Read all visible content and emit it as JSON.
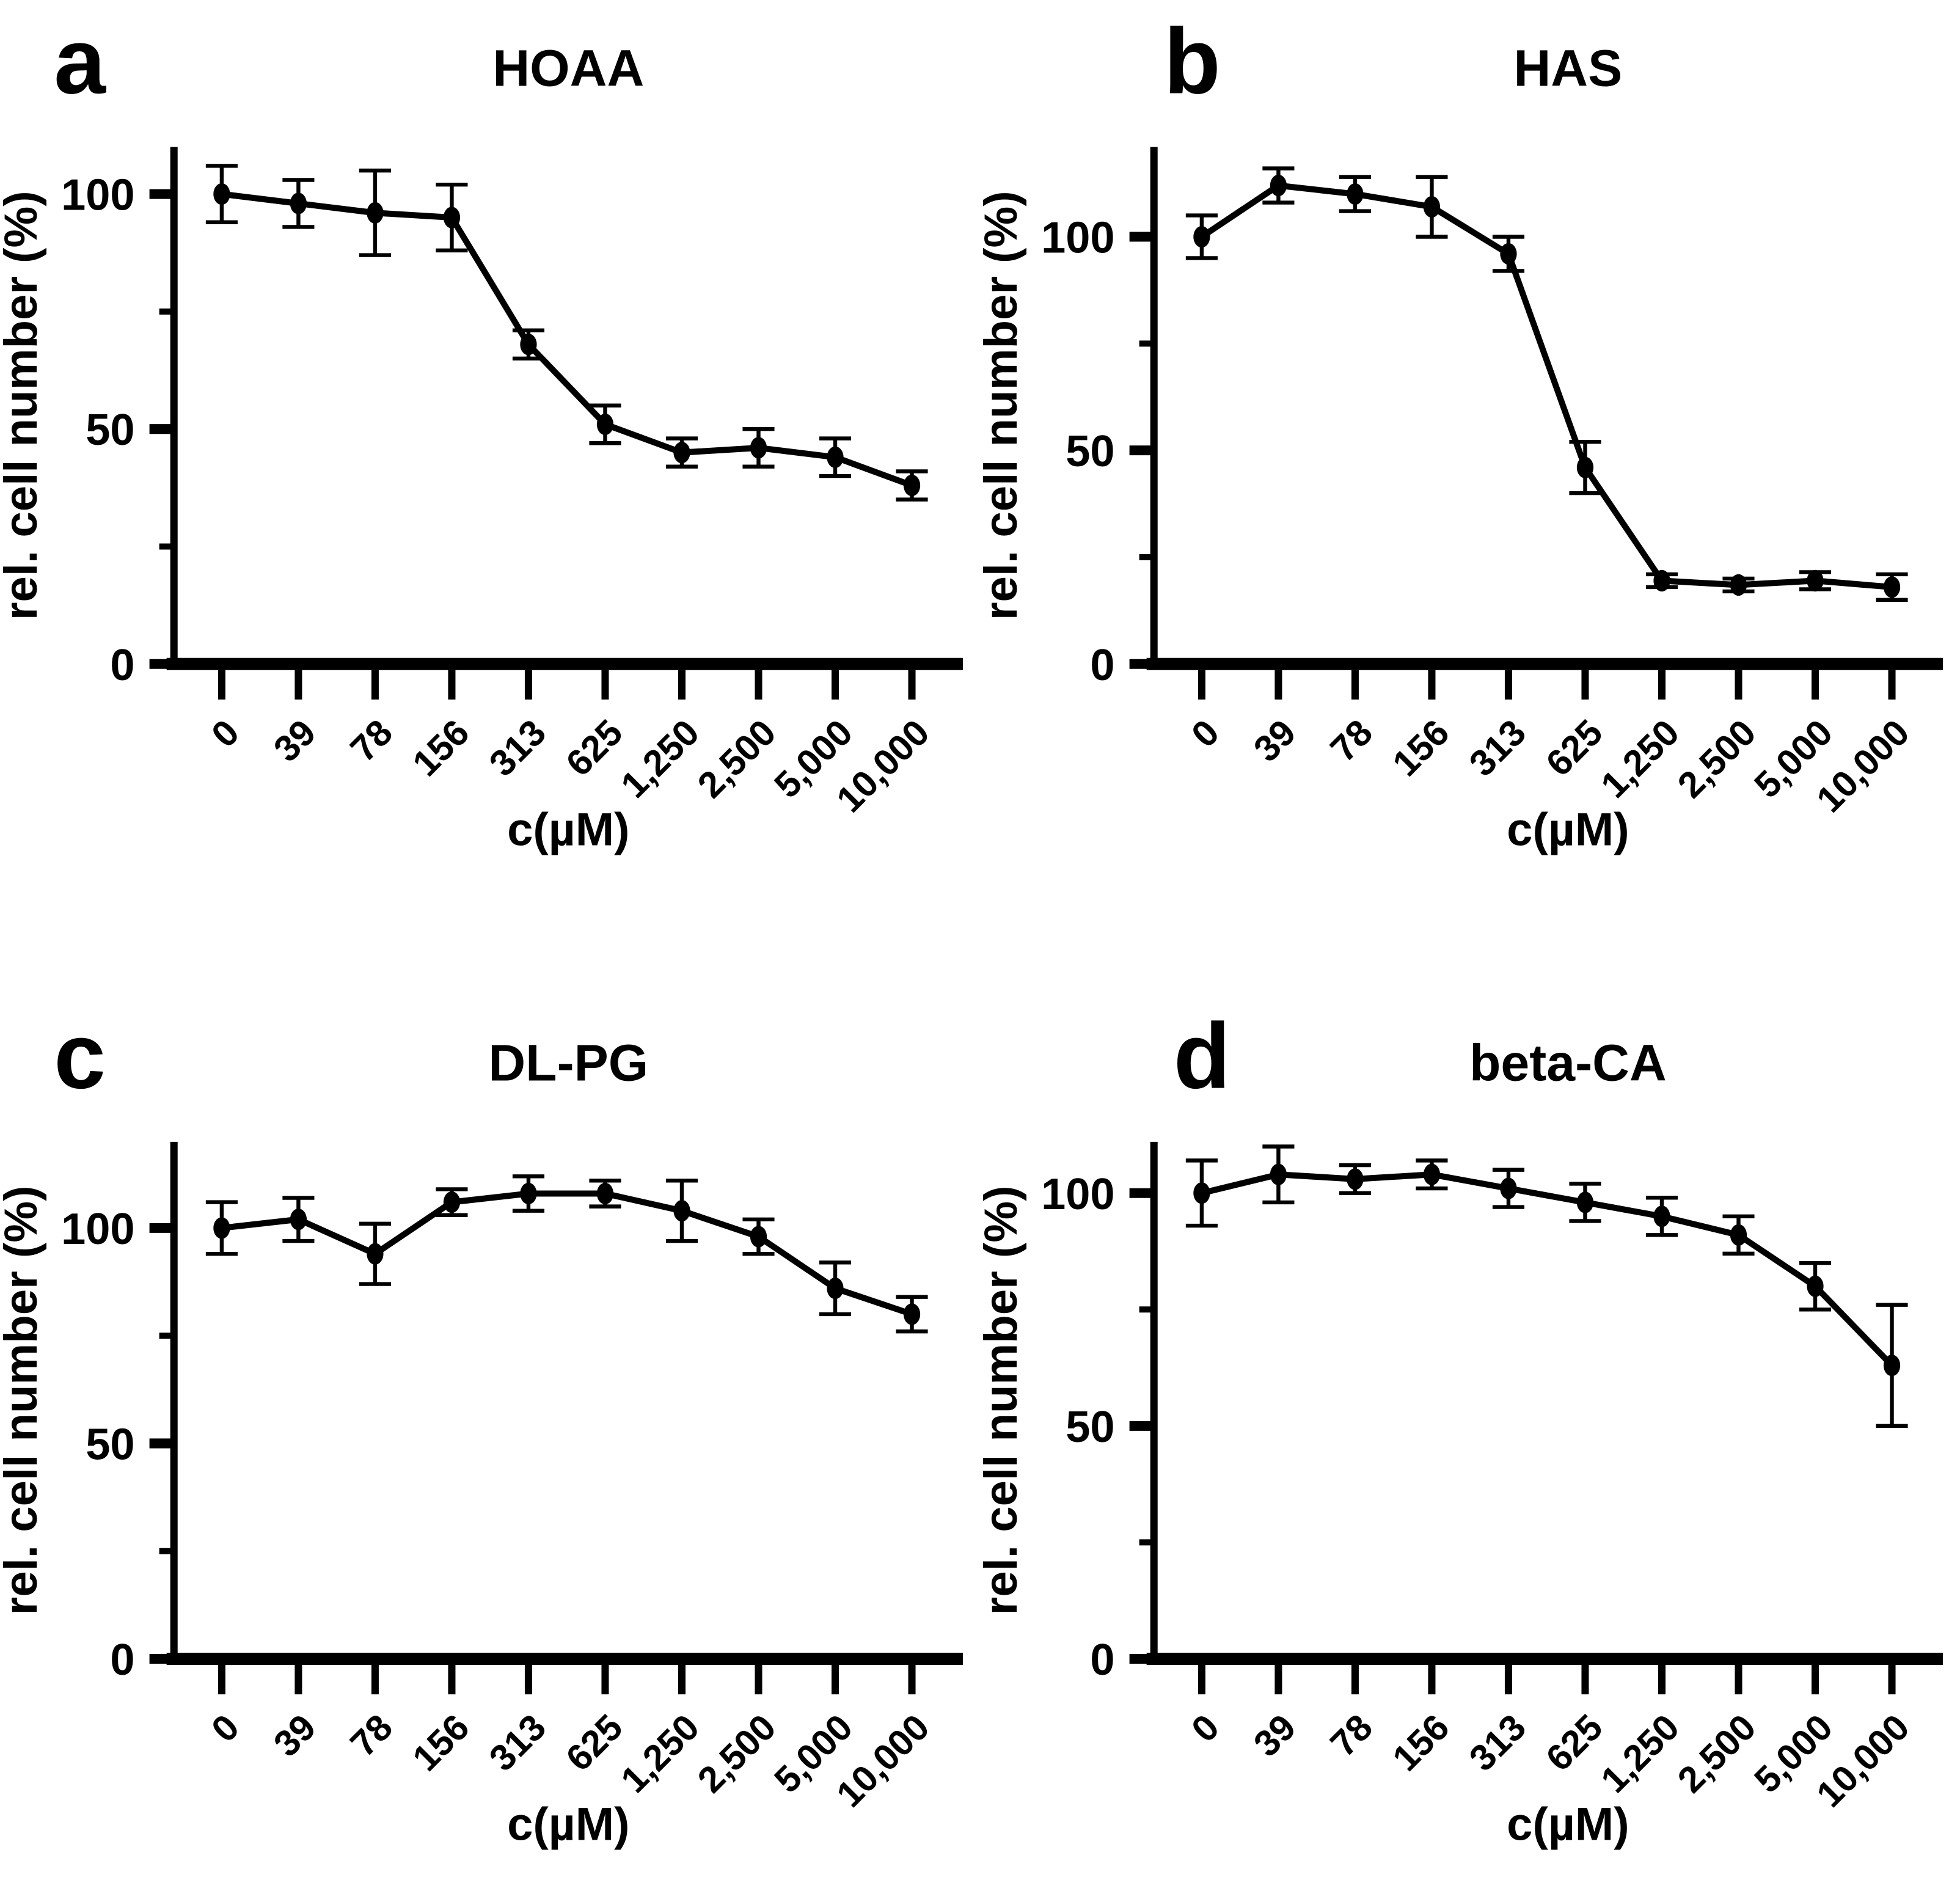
{
  "figure": {
    "background": "#ffffff",
    "ink_color": "#000000",
    "layout": "2x2 panel grid of dose-response curves"
  },
  "chart_data": [
    {
      "type": "line",
      "panel_letter": "a",
      "title": "HOAA",
      "xlabel": "c(µM)",
      "ylabel": "rel. cell number (%)",
      "categories": [
        "0",
        "39",
        "78",
        "156",
        "313",
        "625",
        "1,250",
        "2,500",
        "5,000",
        "10,000"
      ],
      "values": [
        100,
        98,
        96,
        95,
        68,
        51,
        45,
        46,
        44,
        38
      ],
      "errors": [
        6,
        5,
        9,
        7,
        3,
        4,
        3,
        4,
        4,
        3
      ],
      "ylim": [
        0,
        110
      ],
      "yticks_major": [
        0,
        50,
        100
      ],
      "yticks_minor": [
        25,
        75
      ],
      "marker": "filled-ellipse",
      "line_color": "#000000",
      "grid": "off",
      "legend": "none"
    },
    {
      "type": "line",
      "panel_letter": "b",
      "title": "HAS",
      "xlabel": "c(µM)",
      "ylabel": "rel. cell number (%)",
      "categories": [
        "0",
        "39",
        "78",
        "156",
        "313",
        "625",
        "1,250",
        "2,500",
        "5,000",
        "10,000"
      ],
      "values": [
        100,
        112,
        110,
        107,
        96,
        46,
        19.5,
        18.5,
        19.5,
        18
      ],
      "errors": [
        5,
        4,
        4,
        7,
        4,
        6,
        1.5,
        1.5,
        2,
        3
      ],
      "ylim": [
        0,
        121
      ],
      "yticks_major": [
        0,
        50,
        100
      ],
      "yticks_minor": [
        25,
        75
      ],
      "marker": "filled-ellipse",
      "line_color": "#000000",
      "grid": "off",
      "legend": "none"
    },
    {
      "type": "line",
      "panel_letter": "c",
      "title": "DL-PG",
      "xlabel": "c(µM)",
      "ylabel": "rel. cell number (%)",
      "categories": [
        "0",
        "39",
        "78",
        "156",
        "313",
        "625",
        "1,250",
        "2,500",
        "5,000",
        "10,000"
      ],
      "values": [
        100,
        102,
        94,
        106,
        108,
        108,
        104,
        98,
        86,
        80
      ],
      "errors": [
        6,
        5,
        7,
        3,
        4,
        3,
        7,
        4,
        6,
        4
      ],
      "ylim": [
        0,
        120
      ],
      "yticks_major": [
        0,
        50,
        100
      ],
      "yticks_minor": [
        25,
        75
      ],
      "marker": "filled-ellipse",
      "line_color": "#000000",
      "grid": "off",
      "legend": "none"
    },
    {
      "type": "line",
      "panel_letter": "d",
      "title": "beta-CA",
      "xlabel": "c(µM)",
      "ylabel": "rel. cell number (%)",
      "categories": [
        "0",
        "39",
        "78",
        "156",
        "313",
        "625",
        "1,250",
        "2,500",
        "5,000",
        "10,000"
      ],
      "values": [
        100,
        104,
        103,
        104,
        101,
        98,
        95,
        91,
        80,
        63
      ],
      "errors": [
        7,
        6,
        3,
        3,
        4,
        4,
        4,
        4,
        5,
        13
      ],
      "ylim": [
        0,
        111
      ],
      "yticks_major": [
        0,
        50,
        100
      ],
      "yticks_minor": [
        25,
        75
      ],
      "marker": "filled-ellipse",
      "line_color": "#000000",
      "grid": "off",
      "legend": "none"
    }
  ]
}
